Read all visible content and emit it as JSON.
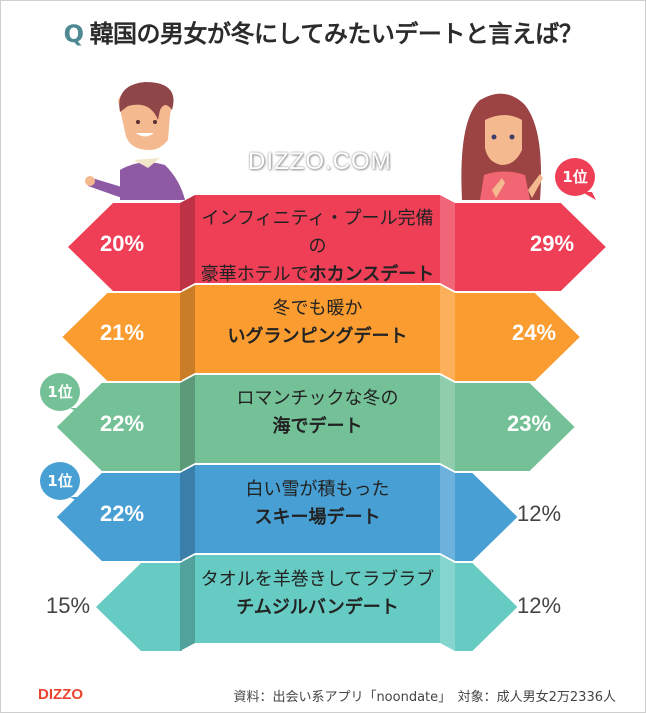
{
  "title": {
    "q": "Q",
    "text": "韓国の男女が冬にしてみたいデートと言えば？"
  },
  "watermark": "DIZZO.COM",
  "badge_label": "1位",
  "rows": [
    {
      "line1": "インフィニティ・プール完備の",
      "line2_plain": "豪華ホテルで",
      "line2_bold": "ホカンスデート",
      "male": "20%",
      "female": "29%",
      "color": "#ee3f56"
    },
    {
      "line1": "冬でも暖か",
      "line2_plain": "",
      "line2_bold": "いグランピングデート",
      "male": "21%",
      "female": "24%",
      "color": "#fa9c30"
    },
    {
      "line1": "ロマンチックな冬の",
      "line2_plain": "",
      "line2_bold": "海でデート",
      "male": "22%",
      "female": "23%",
      "color": "#74c197"
    },
    {
      "line1": "白い雪が積もった",
      "line2_plain": "",
      "line2_bold": "スキー場デート",
      "male": "22%",
      "female": "12%",
      "color": "#479fd3"
    },
    {
      "line1": "タオルを羊巻きしてラブラブ",
      "line2_plain": "",
      "line2_bold": "チムジルバンデート",
      "male": "15%",
      "female": "12%",
      "color": "#66cbc3"
    }
  ],
  "footer": {
    "logo": "DIZZO",
    "source": "資料：出会い系アプリ「noondate」　対象：成人男女2万2336人"
  },
  "chart_data": {
    "type": "bar",
    "title": "韓国の男女が冬にしてみたいデートと言えば？",
    "categories": [
      "インフィニティ・プール完備の豪華ホテルでホカンスデート",
      "冬でも暖かいグランピングデート",
      "ロマンチックな冬の海でデート",
      "白い雪が積もったスキー場デート",
      "タオルを羊巻きしてラブラブチムジルバンデート"
    ],
    "series": [
      {
        "name": "男性",
        "values": [
          20,
          21,
          22,
          22,
          15
        ]
      },
      {
        "name": "女性",
        "values": [
          29,
          24,
          23,
          12,
          12
        ]
      }
    ],
    "annotations": [
      "1位 (女性): ホカンスデート 29%",
      "1位 (男性): 海でデート 22%",
      "1位 (男性): スキー場デート 22%"
    ],
    "unit": "%",
    "source": "資料：出会い系アプリ「noondate」　対象：成人男女2万2336人"
  }
}
